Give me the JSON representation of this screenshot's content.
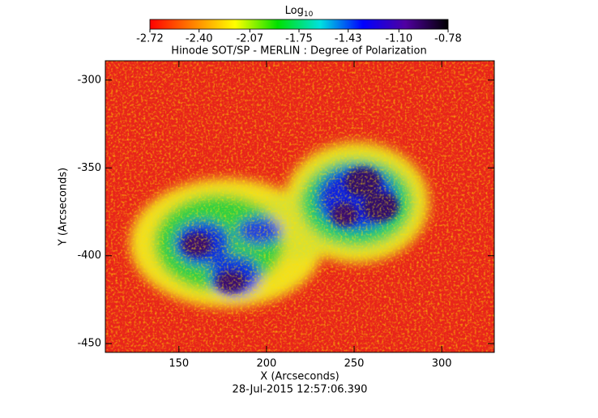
{
  "chart_data": {
    "type": "image",
    "title": "Hinode SOT/SP - MERLIN : Degree of Polarization",
    "x_label": "X (Arcseconds)",
    "y_label": "Y (Arcseconds)",
    "footer": "28-Jul-2015 12:57:06.390",
    "colorbar_label": {
      "text": "Log",
      "subscript": "10"
    },
    "colorbar_lim": [
      -2.72,
      -0.78
    ],
    "colorbar_ticks": [
      -2.72,
      {
        "value": -2.4,
        "label": "-2.40"
      },
      -2.07,
      -1.75,
      -1.43,
      {
        "value": -1.1,
        "label": "-1.10"
      },
      -0.78
    ],
    "colormap": [
      "#ff0000",
      "#ff8000",
      "#ffff00",
      "#00e000",
      "#00e0e0",
      "#0000ff",
      "#5000a0",
      "#000000"
    ],
    "xlim": [
      108,
      330
    ],
    "xticks": [
      150,
      200,
      250,
      300
    ],
    "ylim": [
      -455,
      -289
    ],
    "yticks": [
      -300,
      -350,
      -400,
      -450
    ]
  }
}
